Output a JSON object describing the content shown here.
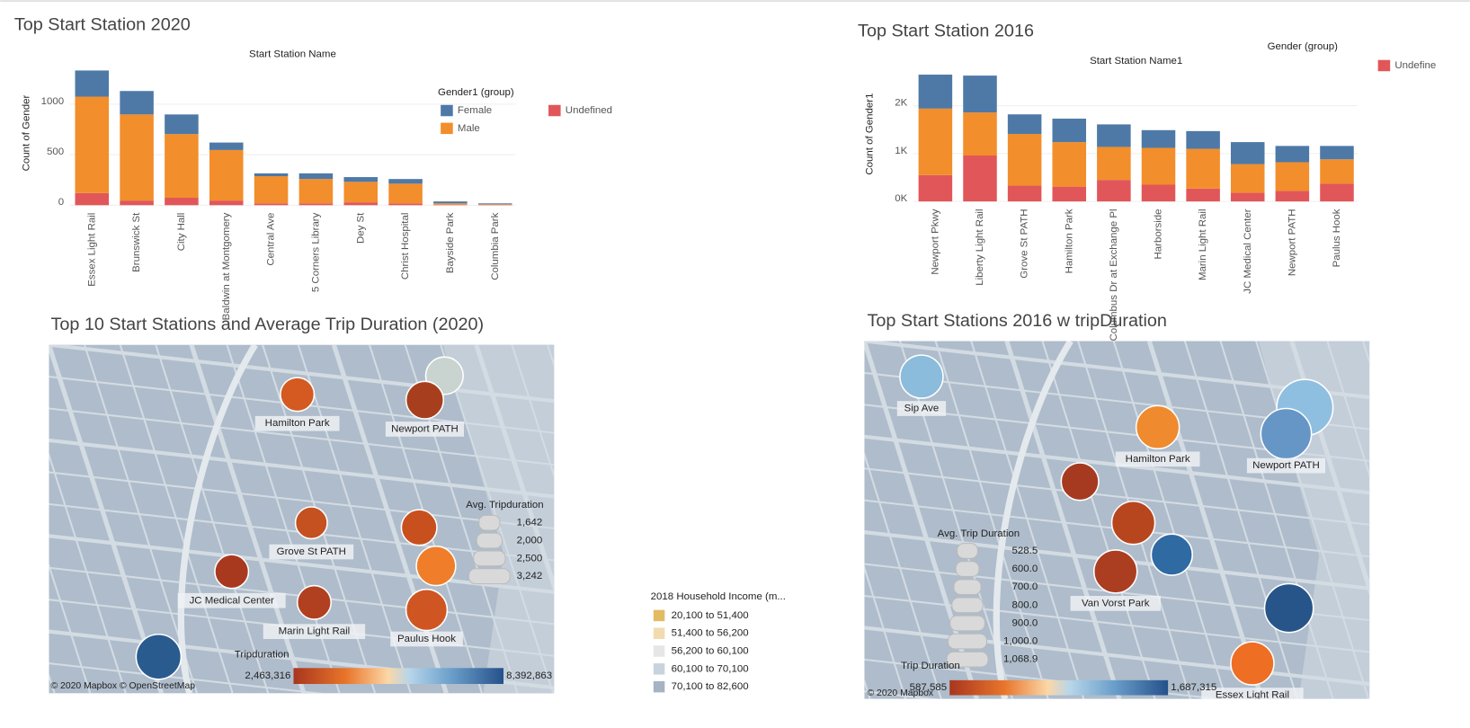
{
  "chart_data": [
    {
      "type": "bar",
      "stacked": true,
      "title": "Top Start Station 2020",
      "x_label": "Start Station Name",
      "y_label": "Count of Gender",
      "legend_title": "Gender1 (group)",
      "categories": [
        "Essex Light Rail",
        "Brunswick St",
        "City Hall",
        "Baldwin at Montgomery",
        "Central Ave",
        "5 Corners Library",
        "Dey St",
        "Christ Hospital",
        "Bayside Park",
        "Columbia Park"
      ],
      "series": [
        {
          "name": "Undefined",
          "color": "#e15759",
          "values": [
            120,
            46,
            74,
            46,
            18,
            18,
            28,
            18,
            5,
            3
          ]
        },
        {
          "name": "Male",
          "color": "#f28e2b",
          "values": [
            954,
            852,
            630,
            500,
            269,
            241,
            203,
            195,
            13,
            6
          ]
        },
        {
          "name": "Female",
          "color": "#4e79a7",
          "values": [
            259,
            232,
            194,
            74,
            28,
            56,
            47,
            46,
            19,
            9
          ]
        }
      ],
      "ylim": [
        0,
        1400
      ],
      "yticks": [
        0,
        500,
        1000
      ],
      "grid": true
    },
    {
      "type": "bar",
      "stacked": true,
      "title": "Top Start Station 2016",
      "x_label": "Start Station Name1",
      "y_label": "Count of Gender1",
      "legend_title": "Gender (group)",
      "categories": [
        "Newport Pkwy",
        "Liberty Light Rail",
        "Grove St PATH",
        "Hamilton Park",
        "Columbus Dr at Exchange Pl",
        "Harborside",
        "Marin Light Rail",
        "JC Medical Center",
        "Newport PATH",
        "Paulus Hook"
      ],
      "series": [
        {
          "name": "Undefine",
          "color": "#e15759",
          "values": [
            550,
            960,
            330,
            310,
            450,
            350,
            270,
            180,
            220,
            370
          ]
        },
        {
          "color": "#f28e2b",
          "values": [
            1390,
            900,
            1080,
            930,
            690,
            770,
            830,
            600,
            600,
            510
          ]
        },
        {
          "color": "#4e79a7",
          "values": [
            710,
            770,
            410,
            490,
            470,
            370,
            370,
            460,
            340,
            280
          ]
        }
      ],
      "ylim": [
        0,
        2800
      ],
      "yticks": [
        {
          "value": 0,
          "label": "0K"
        },
        {
          "value": 1000,
          "label": "1K"
        },
        {
          "value": 2000,
          "label": "2K"
        }
      ],
      "grid": true
    }
  ],
  "maps": [
    {
      "title": "Top 10 Start Stations and Average Trip Duration (2020)",
      "markers": [
        {
          "label": null,
          "color": "#c9d3d0"
        },
        {
          "label": "Hamilton Park",
          "color": "#d45a21"
        },
        {
          "label": "Newport PATH",
          "color": "#a73f1f"
        },
        {
          "label": "Grove St PATH",
          "color": "#c4511f"
        },
        {
          "label": null,
          "color": "#c8501f"
        },
        {
          "label": null,
          "color": "#ef7d2a"
        },
        {
          "label": "JC Medical Center",
          "color": "#a9391e"
        },
        {
          "label": "Marin Light Rail",
          "color": "#b0401f"
        },
        {
          "label": "Paulus Hook",
          "color": "#cf5623"
        },
        {
          "label": null,
          "color": "#295b8f"
        }
      ],
      "size_legend": {
        "title": "Avg. Tripduration",
        "items": [
          {
            "value": 1642,
            "label": "1,642"
          },
          {
            "value": 2000,
            "label": "2,000"
          },
          {
            "value": 2500,
            "label": "2,500"
          },
          {
            "value": 3242,
            "label": "3,242"
          }
        ]
      },
      "color_legend": {
        "title": "Tripduration",
        "min": {
          "value": 2463316,
          "label": "2,463,316"
        },
        "max": {
          "value": 8392863,
          "label": "8,392,863"
        }
      },
      "attribution": "© 2020 Mapbox © OpenStreetMap"
    },
    {
      "title": "Top Start Stations 2016 w tripDuration",
      "markers": [
        {
          "label": "Sip Ave",
          "color": "#8bbcdc"
        },
        {
          "label": "Hamilton Park",
          "color": "#f08a2e"
        },
        {
          "label": null,
          "color": "#8fbfe0"
        },
        {
          "label": "Newport PATH",
          "color": "#6596c6"
        },
        {
          "label": null,
          "color": "#a63a20"
        },
        {
          "label": null,
          "color": "#b7461f"
        },
        {
          "label": null,
          "color": "#2f6aa3"
        },
        {
          "label": "Van Vorst Park",
          "color": "#ab3d20"
        },
        {
          "label": null,
          "color": "#275489"
        },
        {
          "label": "Essex Light Rail",
          "color": "#ee6e24"
        }
      ],
      "size_legend": {
        "title": "Avg. Trip Duration",
        "items": [
          {
            "value": 528.5,
            "label": "528.5"
          },
          {
            "value": 600,
            "label": "600.0"
          },
          {
            "value": 700,
            "label": "700.0"
          },
          {
            "value": 800,
            "label": "800.0"
          },
          {
            "value": 900,
            "label": "900.0"
          },
          {
            "value": 1000,
            "label": "1,000.0"
          },
          {
            "value": 1068.9,
            "label": "1,068.9"
          }
        ]
      },
      "color_legend": {
        "title": "Trip Duration",
        "min": {
          "value": 587585,
          "label": "587,585"
        },
        "max": {
          "value": 1687315,
          "label": "1,687,315"
        }
      },
      "attribution": "© 2020 Mapbox"
    }
  ],
  "income_legend": {
    "title": "2018 Household Income (m...",
    "items": [
      {
        "label": "20,100 to 51,400",
        "color": "#e2bb63"
      },
      {
        "label": "51,400 to 56,200",
        "color": "#f1dcb0"
      },
      {
        "label": "56,200 to 60,100",
        "color": "#e6e6e6"
      },
      {
        "label": "60,100 to 70,100",
        "color": "#c8d3de"
      },
      {
        "label": "70,100 to 82,600",
        "color": "#a5b3c2"
      }
    ]
  }
}
